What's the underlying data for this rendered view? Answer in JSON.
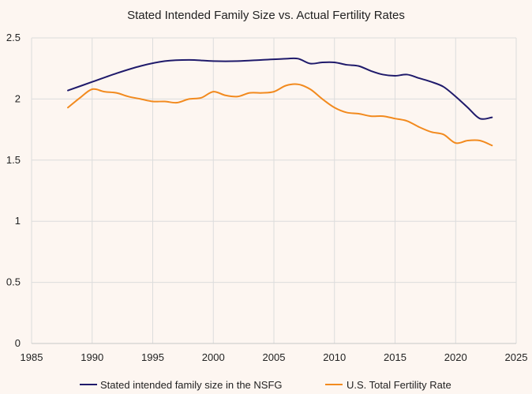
{
  "chart_data": {
    "type": "line",
    "title": "Stated Intended Family Size vs. Actual Fertility Rates",
    "xlabel": "",
    "ylabel": "",
    "xlim": [
      1985,
      2025
    ],
    "ylim": [
      0,
      2.5
    ],
    "xticks": [
      1985,
      1990,
      1995,
      2000,
      2005,
      2010,
      2015,
      2020,
      2025
    ],
    "yticks": [
      0,
      0.5,
      1,
      1.5,
      2,
      2.5
    ],
    "grid": true,
    "legend_position": "bottom",
    "series": [
      {
        "name": "Stated intended family size in the NSFG",
        "color": "#1f1a6b",
        "x": [
          1988,
          1990,
          1992,
          1994,
          1996,
          1998,
          2000,
          2002,
          2004,
          2006,
          2007,
          2008,
          2009,
          2010,
          2011,
          2012,
          2013,
          2014,
          2015,
          2016,
          2017,
          2018,
          2019,
          2020,
          2021,
          2022,
          2023
        ],
        "y": [
          2.07,
          2.14,
          2.21,
          2.27,
          2.31,
          2.32,
          2.31,
          2.31,
          2.32,
          2.33,
          2.33,
          2.29,
          2.3,
          2.3,
          2.28,
          2.27,
          2.23,
          2.2,
          2.19,
          2.2,
          2.17,
          2.14,
          2.1,
          2.02,
          1.93,
          1.84,
          1.85
        ]
      },
      {
        "name": "U.S. Total Fertility Rate",
        "color": "#f28a1e",
        "x": [
          1988,
          1989,
          1990,
          1991,
          1992,
          1993,
          1994,
          1995,
          1996,
          1997,
          1998,
          1999,
          2000,
          2001,
          2002,
          2003,
          2004,
          2005,
          2006,
          2007,
          2008,
          2009,
          2010,
          2011,
          2012,
          2013,
          2014,
          2015,
          2016,
          2017,
          2018,
          2019,
          2020,
          2021,
          2022,
          2023
        ],
        "y": [
          1.93,
          2.01,
          2.08,
          2.06,
          2.05,
          2.02,
          2.0,
          1.98,
          1.98,
          1.97,
          2.0,
          2.01,
          2.06,
          2.03,
          2.02,
          2.05,
          2.05,
          2.06,
          2.11,
          2.12,
          2.08,
          2.0,
          1.93,
          1.89,
          1.88,
          1.86,
          1.86,
          1.84,
          1.82,
          1.77,
          1.73,
          1.71,
          1.64,
          1.66,
          1.66,
          1.62
        ]
      }
    ]
  }
}
